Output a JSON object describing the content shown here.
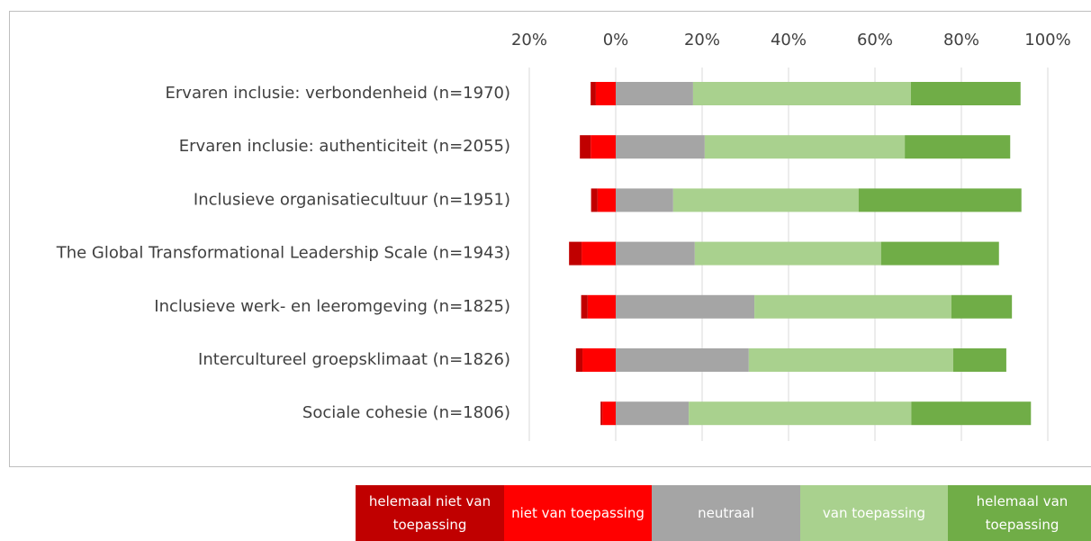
{
  "chart_data": {
    "type": "diverging-stacked-bar",
    "categories": [
      "Ervaren inclusie: verbondenheid (n=1970)",
      "Ervaren inclusie: authenticiteit (n=2055)",
      "Inclusieve organisatiecultuur (n=1951)",
      "The Global Transformational Leadership Scale (n=1943)",
      "Inclusieve werk- en leeromgeving (n=1825)",
      "Intercultureel groepsklimaat (n=1826)",
      "Sociale cohesie (n=1806)"
    ],
    "series": [
      {
        "name": "helemaal niet van toepassing",
        "color": "#c00000",
        "values": [
          -1.2,
          -2.5,
          -1.5,
          -2.9,
          -1.5,
          -1.5,
          -0.4
        ]
      },
      {
        "name": "niet van toepassing",
        "color": "#ff0000",
        "values": [
          -4.6,
          -5.8,
          -4.2,
          -7.9,
          -6.5,
          -7.7,
          -3.1
        ]
      },
      {
        "name": "neutraal",
        "color": "#a5a5a5",
        "values": [
          17.9,
          20.6,
          13.3,
          18.3,
          32.1,
          30.8,
          16.9
        ]
      },
      {
        "name": "van toepassing",
        "color": "#a9d18e",
        "values": [
          50.4,
          46.3,
          42.9,
          43.1,
          45.6,
          47.3,
          51.5
        ]
      },
      {
        "name": "helemaal van toepassing",
        "color": "#70ad47",
        "values": [
          25.4,
          24.4,
          37.7,
          27.3,
          14.0,
          12.3,
          27.7
        ]
      }
    ],
    "xlim": [
      -20,
      100
    ],
    "xticks": [
      {
        "value": -20,
        "label": "20%"
      },
      {
        "value": 0,
        "label": "0%"
      },
      {
        "value": 20,
        "label": "20%"
      },
      {
        "value": 40,
        "label": "40%"
      },
      {
        "value": 60,
        "label": "60%"
      },
      {
        "value": 80,
        "label": "80%"
      },
      {
        "value": 100,
        "label": "100%"
      }
    ],
    "grid": true
  }
}
